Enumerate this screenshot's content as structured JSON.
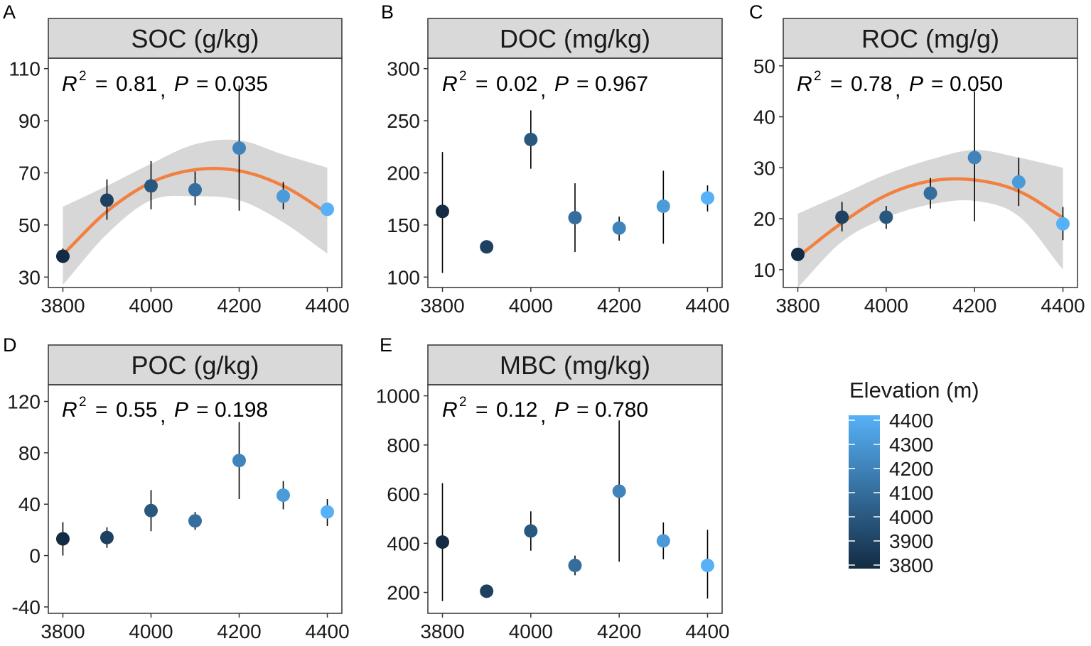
{
  "legend": {
    "title": "Elevation (m)",
    "ticks": [
      4400,
      4300,
      4200,
      4100,
      4000,
      3900,
      3800
    ],
    "range": [
      3800,
      4400
    ],
    "color_low": "#132B43",
    "color_high": "#56B1F7"
  },
  "colors": {
    "fit_line": "#F28040",
    "ribbon": "#D3D3D3",
    "strip": "#D9D9D9",
    "errorbar": "#000000"
  },
  "chart_data": [
    {
      "panel": "A",
      "type": "scatter",
      "title": "SOC (g/kg)",
      "annotation": {
        "r2": "0.81",
        "p": "0.035"
      },
      "x": [
        3800,
        3900,
        4000,
        4100,
        4200,
        4300,
        4400
      ],
      "y": [
        38,
        59.5,
        65,
        63.5,
        79.5,
        61,
        56
      ],
      "err_low": [
        36,
        52,
        56,
        57.5,
        55.5,
        56,
        55
      ],
      "err_high": [
        41,
        67.5,
        74.5,
        70.5,
        103.5,
        66.5,
        57
      ],
      "xlim": [
        3767,
        4433
      ],
      "ylim": [
        26,
        114
      ],
      "xticks": [
        3800,
        4000,
        4200,
        4400
      ],
      "yticks": [
        30,
        50,
        70,
        90,
        110
      ],
      "fit": {
        "x": [
          3800,
          3900,
          4000,
          4100,
          4200,
          4300,
          4400
        ],
        "y": [
          38.6,
          55.2,
          66.3,
          71.2,
          70.8,
          65.0,
          54.6
        ]
      },
      "ribbon_low": [
        27,
        46.5,
        59.5,
        61,
        59.5,
        51,
        39
      ],
      "ribbon_high": [
        57,
        65,
        73.5,
        81,
        82.5,
        77,
        72
      ]
    },
    {
      "panel": "B",
      "type": "scatter",
      "title": "DOC (mg/kg)",
      "annotation": {
        "r2": "0.02",
        "p": "0.967"
      },
      "x": [
        3800,
        3900,
        4000,
        4100,
        4200,
        4300,
        4400
      ],
      "y": [
        163,
        129,
        232,
        157,
        147,
        168,
        176
      ],
      "err_low": [
        104,
        126,
        204,
        124,
        135,
        132,
        163
      ],
      "err_high": [
        220,
        132,
        260,
        190,
        158,
        202,
        188
      ],
      "xlim": [
        3767,
        4433
      ],
      "ylim": [
        90,
        310
      ],
      "xticks": [
        3800,
        4000,
        4200,
        4400
      ],
      "yticks": [
        100,
        150,
        200,
        250,
        300
      ]
    },
    {
      "panel": "C",
      "type": "scatter",
      "title": "ROC (mg/g)",
      "annotation": {
        "r2": "0.78",
        "p": "0.050"
      },
      "x": [
        3800,
        3900,
        4000,
        4100,
        4200,
        4300,
        4400
      ],
      "y": [
        13,
        20.3,
        20.3,
        25,
        32,
        27.2,
        19
      ],
      "err_low": [
        12,
        17.5,
        18,
        22,
        19.5,
        22.5,
        15.8
      ],
      "err_high": [
        14,
        23.3,
        22.5,
        28,
        45,
        32,
        22.3
      ],
      "xlim": [
        3767,
        4433
      ],
      "ylim": [
        6.5,
        51.5
      ],
      "xticks": [
        3800,
        4000,
        4200,
        4400
      ],
      "yticks": [
        10,
        20,
        30,
        40,
        50
      ],
      "fit": {
        "x": [
          3800,
          3900,
          4000,
          4100,
          4200,
          4300,
          4400
        ],
        "y": [
          12.5,
          19.2,
          24.6,
          27.4,
          27.6,
          25.4,
          20.2
        ]
      },
      "ribbon_low": [
        6.5,
        15.5,
        20.2,
        22.8,
        23.5,
        20.5,
        10
      ],
      "ribbon_high": [
        21,
        24.8,
        28.7,
        31.6,
        33.5,
        32,
        30
      ]
    },
    {
      "panel": "D",
      "type": "scatter",
      "title": "POC (g/kg)",
      "annotation": {
        "r2": "0.55",
        "p": "0.198"
      },
      "x": [
        3800,
        3900,
        4000,
        4100,
        4200,
        4300,
        4400
      ],
      "y": [
        13,
        14,
        35,
        27,
        74,
        47,
        34
      ],
      "err_low": [
        0,
        6,
        19,
        20,
        44,
        36,
        23
      ],
      "err_high": [
        26,
        22,
        51,
        34,
        104,
        58,
        44
      ],
      "xlim": [
        3767,
        4433
      ],
      "ylim": [
        -45,
        133
      ],
      "xticks": [
        3800,
        4000,
        4200,
        4400
      ],
      "yticks": [
        -40,
        0,
        40,
        80,
        120
      ]
    },
    {
      "panel": "E",
      "type": "scatter",
      "title": "MBC (mg/kg)",
      "annotation": {
        "r2": "0.12",
        "p": "0.780"
      },
      "x": [
        3800,
        3900,
        4000,
        4100,
        4200,
        4300,
        4400
      ],
      "y": [
        405,
        205,
        450,
        310,
        612,
        410,
        310
      ],
      "err_low": [
        165,
        200,
        370,
        270,
        325,
        335,
        175
      ],
      "err_high": [
        645,
        210,
        530,
        350,
        900,
        485,
        455
      ],
      "xlim": [
        3767,
        4433
      ],
      "ylim": [
        115,
        1045
      ],
      "xticks": [
        3800,
        4000,
        4200,
        4400
      ],
      "yticks": [
        200,
        400,
        600,
        800,
        1000
      ]
    }
  ]
}
